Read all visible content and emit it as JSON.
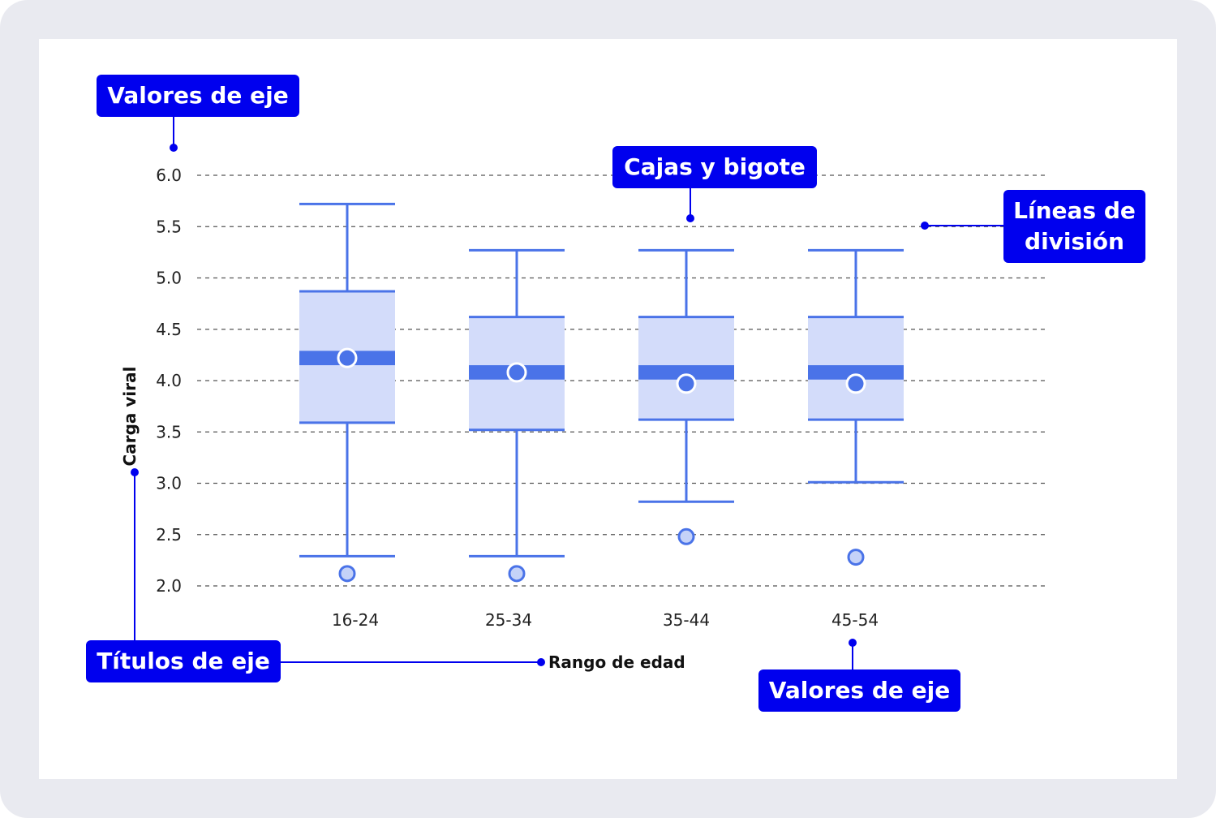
{
  "colors": {
    "background": "#e9eaf0",
    "card": "#ffffff",
    "box_fill": "#d3dcfa",
    "box_stroke": "#4a73e8",
    "median": "#4a73e8",
    "mean_fill": "#4a73e8",
    "outlier_fill": "#c5d2f8",
    "gridline": "#555555",
    "callout": "#0000ee",
    "callout_text": "#ffffff"
  },
  "chart_data": {
    "type": "box",
    "xlabel": "Rango de edad",
    "ylabel": "Carga viral",
    "ylim": [
      2.0,
      6.0
    ],
    "yticks": [
      "2.0",
      "2.5",
      "3.0",
      "3.5",
      "4.0",
      "4.5",
      "5.0",
      "5.5",
      "6.0"
    ],
    "grid": "horizontal-dashed",
    "categories": [
      "16-24",
      "25-34",
      "35-44",
      "45-54"
    ],
    "boxes": [
      {
        "category": "16-24",
        "whisker_low": 2.29,
        "q1": 3.59,
        "median_low": 4.15,
        "median_high": 4.29,
        "q3": 4.87,
        "whisker_high": 5.72,
        "mean": 4.22,
        "outliers": [
          2.12
        ]
      },
      {
        "category": "25-34",
        "whisker_low": 2.29,
        "q1": 3.52,
        "median_low": 4.01,
        "median_high": 4.15,
        "q3": 4.62,
        "whisker_high": 5.27,
        "mean": 4.08,
        "outliers": [
          2.12
        ]
      },
      {
        "category": "35-44",
        "whisker_low": 2.82,
        "q1": 3.62,
        "median_low": 4.01,
        "median_high": 4.15,
        "q3": 4.62,
        "whisker_high": 5.27,
        "mean": 3.97,
        "outliers": [
          2.48
        ]
      },
      {
        "category": "45-54",
        "whisker_low": 3.01,
        "q1": 3.62,
        "median_low": 4.01,
        "median_high": 4.15,
        "q3": 4.62,
        "whisker_high": 5.27,
        "mean": 3.97,
        "outliers": [
          2.28
        ]
      }
    ]
  },
  "callouts": {
    "axis_values_top": "Valores de eje",
    "boxes_whiskers": "Cajas y bigote",
    "gridlines": "Líneas de división",
    "axis_titles": "Títulos de eje",
    "axis_values_bottom": "Valores de eje"
  }
}
